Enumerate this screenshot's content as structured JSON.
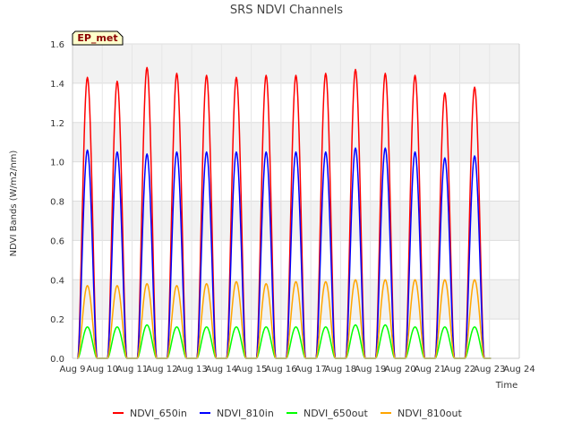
{
  "chart_data": {
    "type": "line",
    "title": "SRS NDVI Channels",
    "xlabel": "Time",
    "ylabel": "NDVI Bands (W/m2/nm)",
    "ylim": [
      0,
      1.6
    ],
    "yticks": [
      0.0,
      0.2,
      0.4,
      0.6,
      0.8,
      1.0,
      1.2,
      1.4,
      1.6
    ],
    "ytick_labels": [
      "0.0",
      "0.2",
      "0.4",
      "0.6",
      "0.8",
      "1.0",
      "1.2",
      "1.4",
      "1.6"
    ],
    "xticks": [
      "Aug 9",
      "Aug 10",
      "Aug 11",
      "Aug 12",
      "Aug 13",
      "Aug 14",
      "Aug 15",
      "Aug 16",
      "Aug 17",
      "Aug 18",
      "Aug 19",
      "Aug 20",
      "Aug 21",
      "Aug 22",
      "Aug 23",
      "Aug 24"
    ],
    "grid": true,
    "legend_position": "bottom",
    "annotation": "EP_met",
    "peak_days": [
      "Aug 9",
      "Aug 10",
      "Aug 11",
      "Aug 12",
      "Aug 13",
      "Aug 14",
      "Aug 15",
      "Aug 16",
      "Aug 17",
      "Aug 18",
      "Aug 19",
      "Aug 20",
      "Aug 21",
      "Aug 22"
    ],
    "series": [
      {
        "name": "NDVI_650in",
        "color": "#ff0000",
        "daily_peaks": [
          1.43,
          1.41,
          1.48,
          1.45,
          1.44,
          1.43,
          1.44,
          1.44,
          1.45,
          1.47,
          1.45,
          1.44,
          1.35,
          1.38
        ]
      },
      {
        "name": "NDVI_810in",
        "color": "#0000ff",
        "daily_peaks": [
          1.06,
          1.05,
          1.04,
          1.05,
          1.05,
          1.05,
          1.05,
          1.05,
          1.05,
          1.07,
          1.07,
          1.05,
          1.02,
          1.03
        ]
      },
      {
        "name": "NDVI_650out",
        "color": "#00ff00",
        "daily_peaks": [
          0.16,
          0.16,
          0.17,
          0.16,
          0.16,
          0.16,
          0.16,
          0.16,
          0.16,
          0.17,
          0.17,
          0.16,
          0.16,
          0.16
        ]
      },
      {
        "name": "NDVI_810out",
        "color": "#ffa500",
        "daily_peaks": [
          0.37,
          0.37,
          0.38,
          0.37,
          0.38,
          0.39,
          0.38,
          0.39,
          0.39,
          0.4,
          0.4,
          0.4,
          0.4,
          0.4
        ]
      }
    ]
  }
}
